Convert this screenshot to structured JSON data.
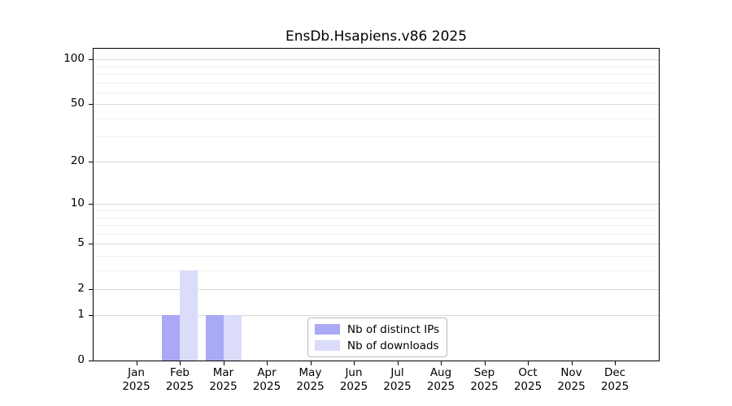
{
  "title": "EnsDb.Hsapiens.v86 2025",
  "chart_data": {
    "type": "bar",
    "title": "EnsDb.Hsapiens.v86 2025",
    "categories": [
      "Jan 2025",
      "Feb 2025",
      "Mar 2025",
      "Apr 2025",
      "May 2025",
      "Jun 2025",
      "Jul 2025",
      "Aug 2025",
      "Sep 2025",
      "Oct 2025",
      "Nov 2025",
      "Dec 2025"
    ],
    "series": [
      {
        "name": "Nb of distinct IPs",
        "color": "#a9a9f5",
        "values": [
          0,
          1,
          1,
          0,
          0,
          0,
          0,
          0,
          0,
          0,
          0,
          0
        ]
      },
      {
        "name": "Nb of downloads",
        "color": "#dbdbfa",
        "values": [
          0,
          3,
          1,
          0,
          0,
          0,
          0,
          0,
          0,
          0,
          0,
          0
        ]
      }
    ],
    "xlabel": "",
    "ylabel": "",
    "y_axis": {
      "scale": "log1p",
      "ticks": [
        0,
        1,
        2,
        5,
        10,
        20,
        50,
        100
      ],
      "minor_ticks": [
        3,
        4,
        6,
        7,
        8,
        9,
        30,
        40,
        60,
        70,
        80,
        90
      ],
      "ylim": [
        0,
        118
      ]
    },
    "grid": "horizontal",
    "legend_position": "lower-center"
  }
}
